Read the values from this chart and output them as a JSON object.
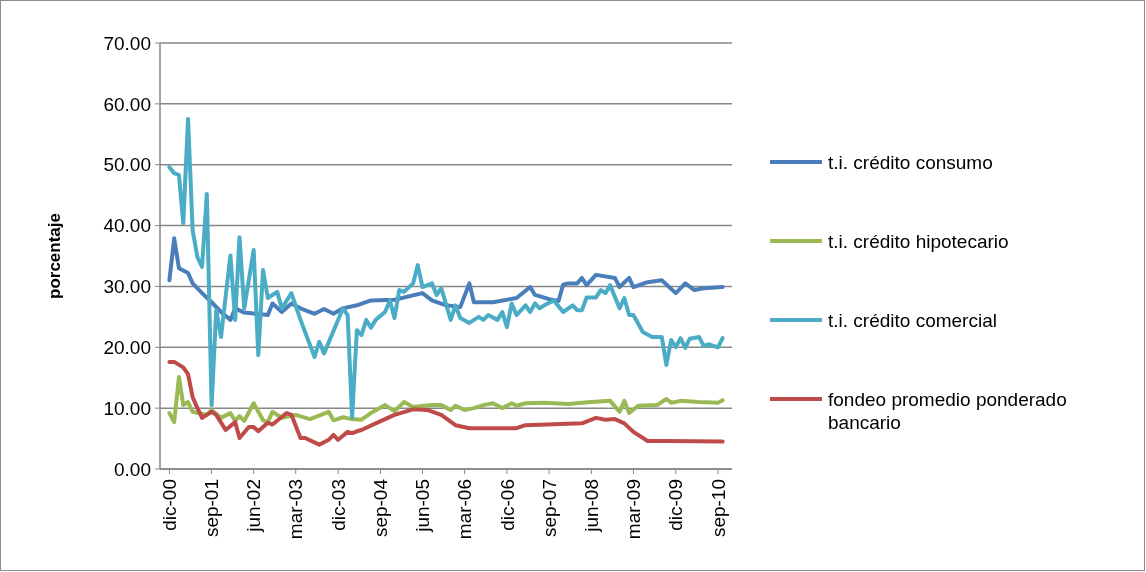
{
  "chart_data": {
    "type": "line",
    "ylabel": "porcentaje",
    "ylim": [
      0,
      70
    ],
    "yticks": [
      {
        "value": 0,
        "label": "0.00"
      },
      {
        "value": 10,
        "label": "10.00"
      },
      {
        "value": 20,
        "label": "20.00"
      },
      {
        "value": 30,
        "label": "30.00"
      },
      {
        "value": 40,
        "label": "40.00"
      },
      {
        "value": 50,
        "label": "50.00"
      },
      {
        "value": 60,
        "label": "60.00"
      },
      {
        "value": 70,
        "label": "70.00"
      }
    ],
    "xlim": [
      "2000-10",
      "2010-12"
    ],
    "xticks": [
      {
        "value": "2000-12",
        "label": "dic-00"
      },
      {
        "value": "2001-09",
        "label": "sep-01"
      },
      {
        "value": "2002-06",
        "label": "jun-02"
      },
      {
        "value": "2003-03",
        "label": "mar-03"
      },
      {
        "value": "2003-12",
        "label": "dic-03"
      },
      {
        "value": "2004-09",
        "label": "sep-04"
      },
      {
        "value": "2005-06",
        "label": "jun-05"
      },
      {
        "value": "2006-03",
        "label": "mar-06"
      },
      {
        "value": "2006-12",
        "label": "dic-06"
      },
      {
        "value": "2007-09",
        "label": "sep-07"
      },
      {
        "value": "2008-06",
        "label": "jun-08"
      },
      {
        "value": "2009-03",
        "label": "mar-09"
      },
      {
        "value": "2009-12",
        "label": "dic-09"
      },
      {
        "value": "2010-09",
        "label": "sep-10"
      }
    ],
    "grid": "y",
    "legend": "right",
    "marker": "none",
    "line_style": "solid",
    "series": [
      {
        "name": "t.i. crédito consumo",
        "color": "#4a7ebb",
        "x": [
          "2000-12",
          "2001-01",
          "2001-02",
          "2001-04",
          "2001-05",
          "2001-07",
          "2001-09",
          "2001-11",
          "2002-01",
          "2002-02",
          "2002-04",
          "2002-09",
          "2002-10",
          "2002-12",
          "2003-02",
          "2003-04",
          "2003-07",
          "2003-09",
          "2003-11",
          "2004-01",
          "2004-04",
          "2004-07",
          "2004-12",
          "2005-06",
          "2005-08",
          "2005-11",
          "2006-02",
          "2006-04",
          "2006-05",
          "2006-09",
          "2007-02",
          "2007-05",
          "2007-06",
          "2007-09",
          "2007-11",
          "2007-12",
          "2008-01",
          "2008-03",
          "2008-04",
          "2008-05",
          "2008-07",
          "2008-11",
          "2008-12",
          "2009-02",
          "2009-03",
          "2009-06",
          "2009-09",
          "2009-12",
          "2010-02",
          "2010-04",
          "2010-06",
          "2010-10"
        ],
        "values": [
          31.0,
          37.9,
          33.0,
          32.2,
          30.5,
          28.9,
          27.4,
          25.8,
          24.5,
          26.4,
          25.7,
          25.3,
          27.2,
          25.8,
          27.2,
          26.4,
          25.5,
          26.3,
          25.5,
          26.4,
          26.9,
          27.7,
          27.8,
          28.9,
          27.7,
          26.9,
          26.6,
          30.5,
          27.4,
          27.4,
          28.1,
          29.9,
          28.6,
          27.9,
          27.6,
          30.3,
          30.5,
          30.5,
          31.4,
          30.2,
          31.9,
          31.4,
          29.9,
          31.4,
          29.9,
          30.7,
          31.0,
          28.9,
          30.5,
          29.4,
          29.7,
          29.9
        ]
      },
      {
        "name": "t.i. crédito hipotecario",
        "color": "#98b954",
        "x": [
          "2000-12",
          "2001-01",
          "2001-02",
          "2001-03",
          "2001-04",
          "2001-05",
          "2001-08",
          "2001-09",
          "2001-11",
          "2002-01",
          "2002-02",
          "2002-03",
          "2002-04",
          "2002-06",
          "2002-08",
          "2002-09",
          "2002-10",
          "2002-12",
          "2003-03",
          "2003-06",
          "2003-10",
          "2003-11",
          "2004-01",
          "2004-03",
          "2004-05",
          "2004-07",
          "2004-10",
          "2004-12",
          "2005-02",
          "2005-04",
          "2005-08",
          "2005-10",
          "2005-12",
          "2006-01",
          "2006-03",
          "2006-05",
          "2006-07",
          "2006-09",
          "2006-11",
          "2007-01",
          "2007-02",
          "2007-04",
          "2007-08",
          "2008-01",
          "2008-06",
          "2008-10",
          "2008-12",
          "2009-01",
          "2009-02",
          "2009-04",
          "2009-08",
          "2009-10",
          "2009-11",
          "2010-01",
          "2010-05",
          "2010-09",
          "2010-10"
        ],
        "values": [
          9.2,
          7.7,
          15.1,
          10.5,
          11.0,
          9.4,
          8.9,
          9.7,
          8.4,
          9.2,
          7.9,
          8.7,
          7.9,
          10.8,
          8.0,
          7.7,
          9.4,
          8.4,
          8.9,
          8.2,
          9.4,
          8.0,
          8.5,
          8.2,
          8.1,
          9.2,
          10.5,
          9.5,
          11.0,
          10.2,
          10.5,
          10.5,
          9.7,
          10.4,
          9.7,
          10.0,
          10.5,
          10.8,
          10.0,
          10.8,
          10.4,
          10.8,
          10.9,
          10.7,
          11.0,
          11.2,
          9.4,
          11.2,
          9.2,
          10.4,
          10.5,
          11.5,
          10.9,
          11.2,
          11.0,
          10.9,
          11.3
        ]
      },
      {
        "name": "t.i. crédito comercial",
        "color": "#4bacc6",
        "x": [
          "2000-12",
          "2001-01",
          "2001-02",
          "2001-03",
          "2001-04",
          "2001-05",
          "2001-06",
          "2001-07",
          "2001-08",
          "2001-09",
          "2001-10",
          "2001-11",
          "2002-01",
          "2002-02",
          "2002-03",
          "2002-04",
          "2002-06",
          "2002-07",
          "2002-08",
          "2002-09",
          "2002-11",
          "2002-12",
          "2003-02",
          "2003-04",
          "2003-07",
          "2003-08",
          "2003-09",
          "2003-12",
          "2004-01",
          "2004-02",
          "2004-03",
          "2004-04",
          "2004-05",
          "2004-06",
          "2004-07",
          "2004-08",
          "2004-10",
          "2004-11",
          "2004-12",
          "2005-01",
          "2005-02",
          "2005-04",
          "2005-05",
          "2005-06",
          "2005-08",
          "2005-09",
          "2005-10",
          "2005-12",
          "2006-01",
          "2006-02",
          "2006-04",
          "2006-06",
          "2006-07",
          "2006-08",
          "2006-10",
          "2006-11",
          "2006-12",
          "2007-01",
          "2007-02",
          "2007-04",
          "2007-05",
          "2007-06",
          "2007-07",
          "2007-08",
          "2007-10",
          "2007-12",
          "2008-02",
          "2008-03",
          "2008-04",
          "2008-05",
          "2008-07",
          "2008-08",
          "2008-09",
          "2008-10",
          "2008-12",
          "2009-01",
          "2009-02",
          "2009-03",
          "2009-05",
          "2009-07",
          "2009-09",
          "2009-10",
          "2009-11",
          "2009-12",
          "2010-01",
          "2010-02",
          "2010-03",
          "2010-05",
          "2010-06",
          "2010-07",
          "2010-09",
          "2010-10"
        ],
        "values": [
          49.6,
          48.6,
          48.3,
          40.4,
          57.5,
          39.2,
          34.8,
          33.2,
          45.2,
          10.5,
          26.1,
          21.7,
          35.1,
          24.5,
          38.1,
          26.4,
          36.0,
          18.7,
          32.7,
          28.1,
          29.1,
          26.4,
          28.9,
          24.5,
          18.4,
          20.9,
          19.0,
          24.5,
          26.4,
          25.3,
          8.5,
          22.8,
          22.0,
          24.5,
          23.2,
          24.5,
          25.8,
          27.7,
          24.8,
          29.4,
          29.1,
          30.5,
          33.5,
          29.9,
          30.5,
          28.6,
          29.7,
          24.5,
          26.9,
          24.8,
          24.0,
          25.0,
          24.5,
          25.3,
          24.5,
          25.8,
          23.3,
          27.2,
          25.3,
          26.9,
          25.8,
          27.2,
          26.4,
          26.9,
          27.7,
          25.8,
          26.9,
          26.1,
          26.1,
          28.2,
          28.2,
          29.4,
          28.9,
          30.2,
          26.4,
          28.1,
          25.3,
          25.3,
          22.5,
          21.7,
          21.7,
          17.1,
          21.2,
          20.0,
          21.5,
          19.9,
          21.4,
          21.7,
          20.2,
          20.5,
          20.0,
          21.5
        ]
      },
      {
        "name": "fondeo promedio ponderado bancario",
        "color": "#be4b48",
        "x": [
          "2000-12",
          "2001-01",
          "2001-03",
          "2001-04",
          "2001-05",
          "2001-06",
          "2001-07",
          "2001-09",
          "2001-10",
          "2001-12",
          "2002-02",
          "2002-03",
          "2002-05",
          "2002-06",
          "2002-07",
          "2002-09",
          "2002-10",
          "2003-01",
          "2003-02",
          "2003-04",
          "2003-05",
          "2003-08",
          "2003-10",
          "2003-11",
          "2003-12",
          "2004-02",
          "2004-03",
          "2004-04",
          "2004-05",
          "2004-08",
          "2004-12",
          "2005-04",
          "2005-07",
          "2005-10",
          "2006-01",
          "2006-04",
          "2007-02",
          "2007-04",
          "2008-04",
          "2008-07",
          "2008-09",
          "2008-11",
          "2009-01",
          "2009-03",
          "2009-06",
          "2009-10",
          "2010-10"
        ],
        "values": [
          17.6,
          17.6,
          16.7,
          15.6,
          11.8,
          10.0,
          8.4,
          9.4,
          8.9,
          6.4,
          7.7,
          5.1,
          6.9,
          6.9,
          6.2,
          7.6,
          7.3,
          9.2,
          8.9,
          5.1,
          5.1,
          4.0,
          4.8,
          5.6,
          4.8,
          6.1,
          5.9,
          6.2,
          6.4,
          7.5,
          8.9,
          9.8,
          9.7,
          8.9,
          7.2,
          6.7,
          6.7,
          7.2,
          7.5,
          8.4,
          8.1,
          8.2,
          7.5,
          6.1,
          4.6,
          4.6,
          4.5
        ]
      }
    ]
  }
}
